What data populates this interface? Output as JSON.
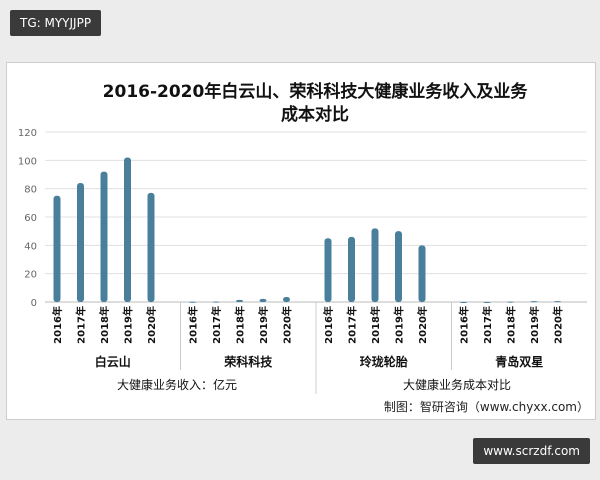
{
  "badges": {
    "top_left": "TG: MYYJJPP",
    "bottom_right": "www.scrzdf.com"
  },
  "chart_data": {
    "type": "bar",
    "title": "2016-2020年白云山、荣科科技大健康业务收入及业务成本对比",
    "title_lines": [
      "2016-2020年白云山、荣科科技大健康业务收入及业务",
      "成本对比"
    ],
    "groups": [
      "白云山",
      "荣科科技",
      "玲珑轮胎",
      "青岛双星"
    ],
    "categories": [
      "2016年",
      "2017年",
      "2018年",
      "2019年",
      "2020年"
    ],
    "series": [
      {
        "values": [
          75,
          84,
          92,
          102,
          77
        ]
      },
      {
        "values": [
          0.2,
          0.3,
          1.5,
          2.2,
          3.5
        ]
      },
      {
        "values": [
          45,
          46,
          52,
          50,
          40
        ]
      },
      {
        "values": [
          0,
          0,
          0.3,
          0.6,
          0.6
        ]
      }
    ],
    "ylim": [
      0,
      120
    ],
    "yticks": [
      0,
      20,
      40,
      60,
      80,
      100,
      120
    ],
    "grid": true,
    "bar_color": "#4a7f9c",
    "xlabel_left": "大健康业务收入：亿元",
    "xlabel_right": "大健康业务成本对比",
    "source": "制图：智研咨询（www.chyxx.com）"
  }
}
